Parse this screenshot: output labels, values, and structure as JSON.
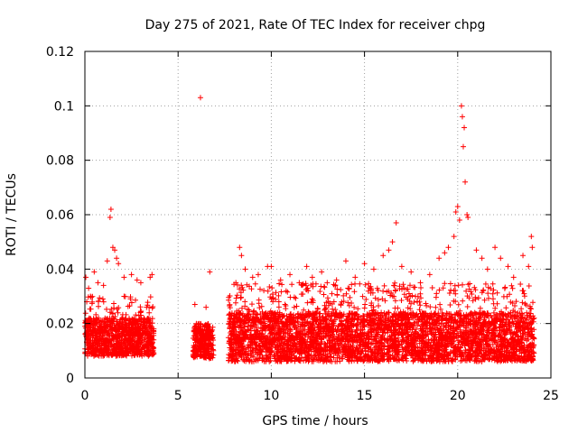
{
  "chart_data": {
    "type": "scatter",
    "title": "Day 275 of 2021, Rate Of TEC Index for receiver chpg",
    "xlabel": "GPS time / hours",
    "ylabel": "ROTI / TECUs",
    "xlim": [
      0,
      25
    ],
    "ylim": [
      0,
      0.12
    ],
    "grid": true,
    "x_ticks": [
      0,
      5,
      10,
      15,
      20,
      25
    ],
    "x_tick_labels": [
      "0",
      "5",
      "10",
      "15",
      "20",
      "25"
    ],
    "y_ticks": [
      0,
      0.02,
      0.04,
      0.06,
      0.08,
      0.1,
      0.12
    ],
    "y_tick_labels": [
      "0",
      "0.02",
      "0.04",
      "0.06",
      "0.08",
      "0.1",
      "0.12"
    ],
    "marker": "plus",
    "marker_color": "#ff0000",
    "data_gap_hours": [
      3.7,
      5.8
    ],
    "series": [
      {
        "name": "ROTI",
        "color": "#ff0000",
        "segments": [
          {
            "start": 0.0,
            "end": 3.7,
            "base_min": 0.008,
            "base_max": 0.022,
            "spread_max": 0.03
          },
          {
            "start": 5.8,
            "end": 6.9,
            "base_min": 0.007,
            "base_max": 0.02,
            "spread_max": 0.018
          },
          {
            "start": 7.7,
            "end": 24.1,
            "base_min": 0.006,
            "base_max": 0.024,
            "spread_max": 0.035
          }
        ],
        "points": [
          [
            0.05,
            0.037
          ],
          [
            0.1,
            0.028
          ],
          [
            0.2,
            0.033
          ],
          [
            0.3,
            0.03
          ],
          [
            0.5,
            0.039
          ],
          [
            0.7,
            0.035
          ],
          [
            1.0,
            0.034
          ],
          [
            1.2,
            0.043
          ],
          [
            1.35,
            0.059
          ],
          [
            1.4,
            0.062
          ],
          [
            1.5,
            0.048
          ],
          [
            1.6,
            0.047
          ],
          [
            1.7,
            0.044
          ],
          [
            1.8,
            0.042
          ],
          [
            2.1,
            0.037
          ],
          [
            2.5,
            0.038
          ],
          [
            2.8,
            0.036
          ],
          [
            3.0,
            0.035
          ],
          [
            3.5,
            0.037
          ],
          [
            3.6,
            0.038
          ],
          [
            5.9,
            0.027
          ],
          [
            6.2,
            0.103
          ],
          [
            6.5,
            0.026
          ],
          [
            6.7,
            0.039
          ],
          [
            8.1,
            0.035
          ],
          [
            8.3,
            0.048
          ],
          [
            8.4,
            0.045
          ],
          [
            8.6,
            0.04
          ],
          [
            9.0,
            0.037
          ],
          [
            9.3,
            0.038
          ],
          [
            9.8,
            0.041
          ],
          [
            10.0,
            0.041
          ],
          [
            10.5,
            0.036
          ],
          [
            11.0,
            0.038
          ],
          [
            11.5,
            0.035
          ],
          [
            11.9,
            0.041
          ],
          [
            12.2,
            0.037
          ],
          [
            12.7,
            0.039
          ],
          [
            13.0,
            0.035
          ],
          [
            13.5,
            0.036
          ],
          [
            14.0,
            0.043
          ],
          [
            14.5,
            0.037
          ],
          [
            15.0,
            0.042
          ],
          [
            15.5,
            0.04
          ],
          [
            16.0,
            0.045
          ],
          [
            16.3,
            0.047
          ],
          [
            16.5,
            0.05
          ],
          [
            16.7,
            0.057
          ],
          [
            17.0,
            0.041
          ],
          [
            17.5,
            0.039
          ],
          [
            18.0,
            0.035
          ],
          [
            18.5,
            0.038
          ],
          [
            19.0,
            0.044
          ],
          [
            19.3,
            0.046
          ],
          [
            19.5,
            0.048
          ],
          [
            19.8,
            0.052
          ],
          [
            19.9,
            0.061
          ],
          [
            20.0,
            0.063
          ],
          [
            20.1,
            0.058
          ],
          [
            20.2,
            0.1
          ],
          [
            20.25,
            0.096
          ],
          [
            20.3,
            0.085
          ],
          [
            20.35,
            0.092
          ],
          [
            20.4,
            0.072
          ],
          [
            20.5,
            0.06
          ],
          [
            20.55,
            0.059
          ],
          [
            21.0,
            0.047
          ],
          [
            21.3,
            0.044
          ],
          [
            21.6,
            0.04
          ],
          [
            22.0,
            0.048
          ],
          [
            22.3,
            0.044
          ],
          [
            22.7,
            0.041
          ],
          [
            23.0,
            0.037
          ],
          [
            23.5,
            0.045
          ],
          [
            23.8,
            0.041
          ],
          [
            23.95,
            0.052
          ],
          [
            24.0,
            0.048
          ]
        ]
      }
    ]
  }
}
